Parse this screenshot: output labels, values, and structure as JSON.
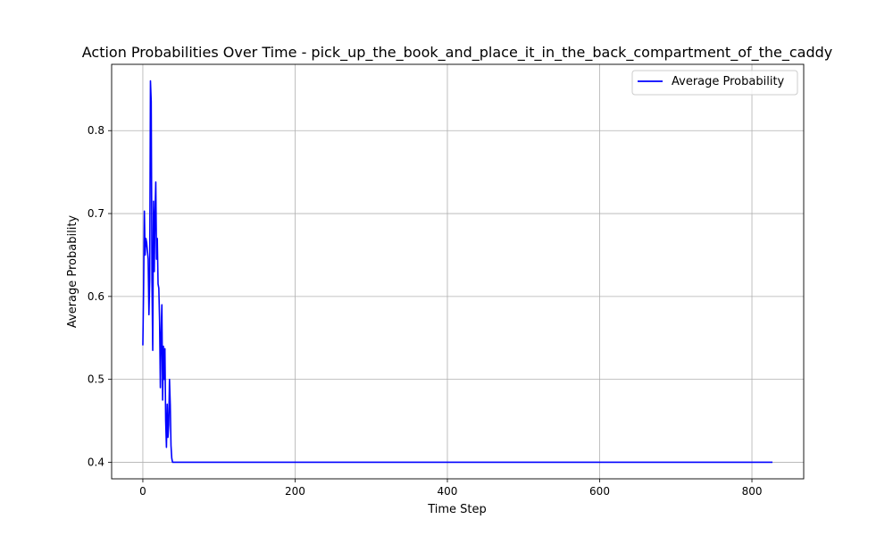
{
  "chart_data": {
    "type": "line",
    "title": "Action Probabilities Over Time - pick_up_the_book_and_place_it_in_the_back_compartment_of_the_caddy",
    "xlabel": "Time Step",
    "ylabel": "Average Probability",
    "xlim": [
      -41,
      868
    ],
    "ylim": [
      0.38,
      0.88
    ],
    "xticks": [
      0,
      200,
      400,
      600,
      800
    ],
    "xtick_labels": [
      "0",
      "200",
      "400",
      "600",
      "800"
    ],
    "yticks": [
      0.4,
      0.5,
      0.6,
      0.7,
      0.8
    ],
    "ytick_labels": [
      "0.4",
      "0.5",
      "0.6",
      "0.7",
      "0.8"
    ],
    "grid": true,
    "legend_position": "top-right",
    "series": [
      {
        "name": "Average Probability",
        "color": "#0000ff",
        "x": [
          0,
          1,
          2,
          3,
          4,
          5,
          6,
          7,
          8,
          9,
          10,
          11,
          12,
          13,
          14,
          15,
          16,
          17,
          18,
          19,
          20,
          21,
          22,
          23,
          24,
          25,
          26,
          27,
          28,
          29,
          30,
          31,
          32,
          33,
          34,
          35,
          36,
          37,
          38,
          39,
          40,
          41,
          42,
          43,
          44,
          45,
          50,
          100,
          200,
          300,
          400,
          500,
          600,
          700,
          800,
          827
        ],
        "y": [
          0.541,
          0.61,
          0.703,
          0.65,
          0.67,
          0.665,
          0.655,
          0.645,
          0.578,
          0.62,
          0.86,
          0.835,
          0.62,
          0.535,
          0.715,
          0.63,
          0.7,
          0.738,
          0.645,
          0.67,
          0.615,
          0.61,
          0.57,
          0.49,
          0.555,
          0.59,
          0.475,
          0.54,
          0.5,
          0.537,
          0.45,
          0.418,
          0.47,
          0.43,
          0.445,
          0.5,
          0.47,
          0.42,
          0.405,
          0.4,
          0.4,
          0.4,
          0.4,
          0.4,
          0.4,
          0.4,
          0.4,
          0.4,
          0.4,
          0.4,
          0.4,
          0.4,
          0.4,
          0.4,
          0.4,
          0.4
        ]
      }
    ]
  },
  "colors": {
    "line": "#0000ff",
    "grid": "#b0b0b0",
    "axes": "#000000"
  }
}
